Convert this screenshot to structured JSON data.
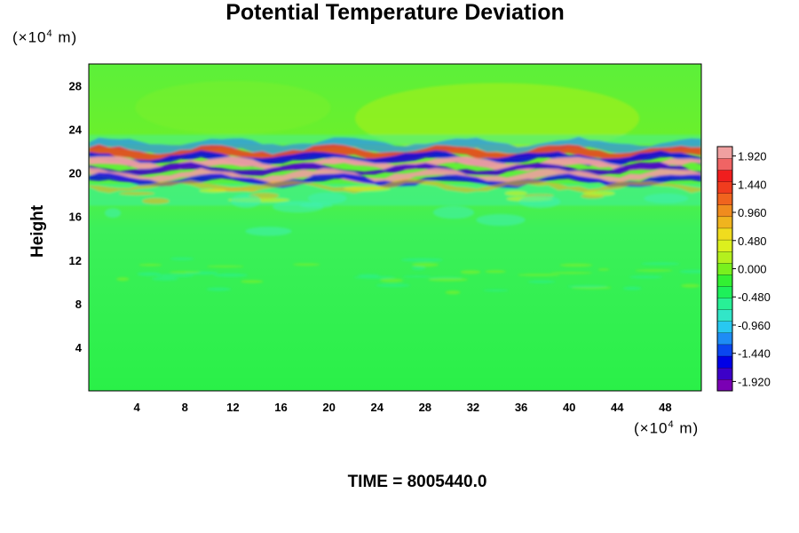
{
  "chart_data": {
    "type": "heatmap",
    "title": "Potential Temperature Deviation",
    "xlabel": "",
    "ylabel": "Height",
    "x_unit_base": "(×10",
    "x_unit_exp": "4",
    "x_unit_tail": " m)",
    "y_unit_base": "(×10",
    "y_unit_exp": "4",
    "y_unit_tail": " m)",
    "xlim": [
      0,
      51
    ],
    "ylim": [
      0,
      30
    ],
    "x_ticks": [
      "4",
      "8",
      "12",
      "16",
      "20",
      "24",
      "28",
      "32",
      "36",
      "40",
      "44",
      "48"
    ],
    "y_ticks": [
      "4",
      "8",
      "12",
      "16",
      "20",
      "24",
      "28"
    ],
    "colorbar": {
      "range": [
        -2.08,
        2.08
      ],
      "labels": [
        "1.920",
        "1.440",
        "0.960",
        "0.480",
        "0.000",
        "-0.480",
        "-0.960",
        "-1.440",
        "-1.920"
      ],
      "colors": [
        "#7a00b4",
        "#3c00c8",
        "#0000e6",
        "#0a46f0",
        "#1e8cf5",
        "#28c8f0",
        "#32e6c8",
        "#28f096",
        "#1ef05a",
        "#32f032",
        "#78f01e",
        "#b4f01e",
        "#dcf01e",
        "#f0dc1e",
        "#f0b41e",
        "#f08c1e",
        "#f0641e",
        "#f03c1e",
        "#f01e1e",
        "#f06464",
        "#f0a0a0"
      ]
    },
    "annotation": "TIME = 8005440.0",
    "features": [
      {
        "name": "strong oscillation band",
        "y_range": [
          18.8,
          22.8
        ],
        "peak": 2.0
      },
      {
        "name": "weak disturbance band",
        "y_range": [
          9,
          12
        ],
        "peak": 0.3
      }
    ]
  }
}
